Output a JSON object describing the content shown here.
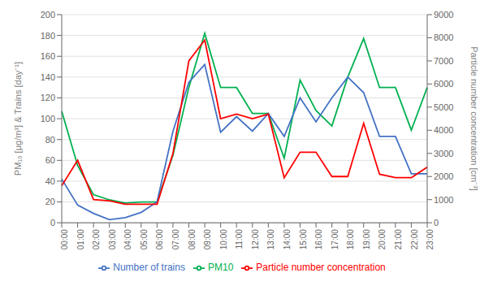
{
  "chart_data": {
    "type": "line",
    "ylabel": "PM₁₀ [μg/m³] & Trains [day⁻¹]",
    "y2label": "Particle number concentration [cm⁻³]",
    "categories": [
      "00:00",
      "01:00",
      "02:00",
      "03:00",
      "04:00",
      "05:00",
      "06:00",
      "07:00",
      "08:00",
      "09:00",
      "10:00",
      "11:00",
      "12:00",
      "13:00",
      "14:00",
      "15:00",
      "16:00",
      "17:00",
      "18:00",
      "19:00",
      "20:00",
      "21:00",
      "22:00",
      "23:00"
    ],
    "series": [
      {
        "name": "PM10",
        "color": "#00b050",
        "values": [
          107,
          55,
          27,
          22,
          19,
          20,
          20,
          65,
          130,
          182,
          130,
          130,
          105,
          105,
          62,
          137,
          108,
          93,
          140,
          177,
          130,
          130,
          89,
          130
        ]
      },
      {
        "name": "Number of trains",
        "color": "#4472c4",
        "values": [
          42,
          17,
          9,
          3,
          5,
          10,
          20,
          88,
          135,
          152,
          87,
          102,
          88,
          105,
          83,
          120,
          97,
          120,
          140,
          125,
          83,
          83,
          47,
          47
        ]
      },
      {
        "name": "Particle number concentration",
        "color": "#ff0000",
        "axis": "y2",
        "values": [
          1600,
          2700,
          1000,
          950,
          800,
          800,
          800,
          3000,
          7000,
          7900,
          4500,
          4700,
          4500,
          4700,
          1950,
          3050,
          3050,
          2000,
          2000,
          4300,
          2100,
          1950,
          1950,
          2400
        ]
      }
    ],
    "ylim": [
      0,
      200
    ],
    "yticks": [
      0,
      20,
      40,
      60,
      80,
      100,
      120,
      140,
      160,
      180,
      200
    ],
    "y2lim": [
      0,
      9000
    ],
    "y2ticks": [
      0,
      1000,
      2000,
      3000,
      4000,
      5000,
      6000,
      7000,
      8000,
      9000
    ],
    "grid": true,
    "legend": "bottom"
  }
}
